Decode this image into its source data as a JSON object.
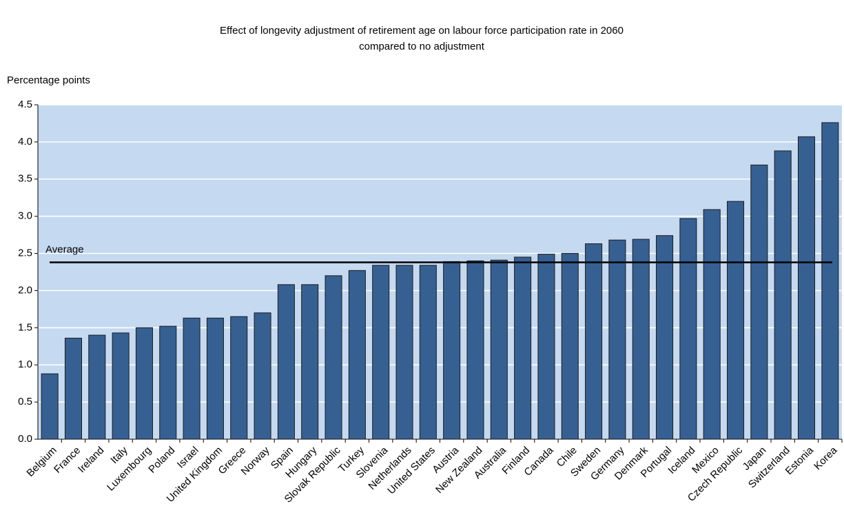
{
  "chart_data": {
    "type": "bar",
    "title": "Effect of longevity adjustment of retirement age on labour force participation rate in 2060",
    "subtitle": "compared to no adjustment",
    "y_label": "Percentage points",
    "categories": [
      "Belgium",
      "France",
      "Ireland",
      "Italy",
      "Luxembourg",
      "Poland",
      "Israel",
      "United Kingdom",
      "Greece",
      "Norway",
      "Spain",
      "Hungary",
      "Slovak Republic",
      "Turkey",
      "Slovenia",
      "Netherlands",
      "United States",
      "Austria",
      "New Zealand",
      "Australia",
      "Finland",
      "Canada",
      "Chile",
      "Sweden",
      "Germany",
      "Denmark",
      "Portugal",
      "Iceland",
      "Mexico",
      "Czech Republic",
      "Japan",
      "Switzerland",
      "Estonia",
      "Korea"
    ],
    "values": [
      0.88,
      1.36,
      1.4,
      1.43,
      1.5,
      1.52,
      1.63,
      1.63,
      1.65,
      1.7,
      2.08,
      2.08,
      2.2,
      2.27,
      2.34,
      2.34,
      2.34,
      2.39,
      2.4,
      2.41,
      2.45,
      2.49,
      2.5,
      2.63,
      2.68,
      2.69,
      2.74,
      2.97,
      3.09,
      3.2,
      3.69,
      3.88,
      4.07,
      4.26
    ],
    "color": "#376092",
    "average": {
      "label": "Average",
      "value": 2.38
    },
    "ylim": [
      0,
      4.5
    ],
    "yticks": [
      {
        "value": 0,
        "label": "0.0"
      },
      0.5,
      {
        "value": 1,
        "label": "1.0"
      },
      1.5,
      {
        "value": 2,
        "label": "2.0"
      },
      2.5,
      {
        "value": 3,
        "label": "3.0"
      },
      3.5,
      {
        "value": 4,
        "label": "4.0"
      },
      4.5
    ],
    "grid": true
  }
}
